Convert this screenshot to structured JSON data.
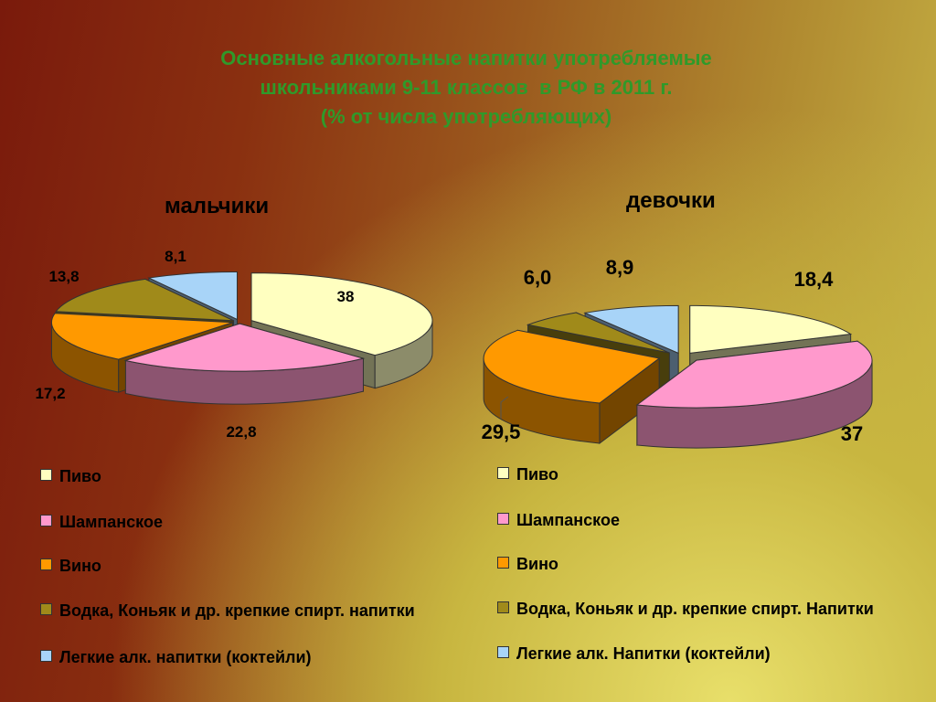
{
  "title": {
    "line1": "Основные алкогольные напитки употребляемые",
    "line2": "школьниками 9-11 классов  в РФ в 2011 г.",
    "line3": "(% от числа употребляющих)"
  },
  "colors": {
    "beer": "#ffffc0",
    "champagne": "#ff99cc",
    "wine": "#ff9900",
    "spirits": "#a08a1a",
    "light": "#a8d4f8"
  },
  "legend_left": [
    {
      "label": "Пиво",
      "color": "#ffffc0"
    },
    {
      "label": "Шампанское",
      "color": "#ff99cc"
    },
    {
      "label": "Вино",
      "color": "#ff9900"
    },
    {
      "label": "Водка, Коньяк и др. крепкие спирт. напитки",
      "color": "#a08a1a"
    },
    {
      "label": "Легкие алк. напитки (коктейли)",
      "color": "#a8d4f8"
    }
  ],
  "legend_right": [
    {
      "label": "Пиво",
      "color": "#ffffc0"
    },
    {
      "label": "Шампанское",
      "color": "#ff99cc"
    },
    {
      "label": "Вино",
      "color": "#ff9900"
    },
    {
      "label": "Водка, Коньяк и др. крепкие спирт. Напитки",
      "color": "#a08a1a"
    },
    {
      "label": "Легкие алк. Напитки (коктейли)",
      "color": "#a8d4f8"
    }
  ],
  "chart_data": [
    {
      "type": "pie",
      "title": "мальчики",
      "categories": [
        "Пиво",
        "Шампанское",
        "Вино",
        "Водка, Коньяк и др. крепкие спирт. напитки",
        "Легкие алк. напитки (коктейли)"
      ],
      "values": [
        38,
        22.8,
        17.2,
        13.8,
        8.1
      ],
      "value_labels": [
        "38",
        "22,8",
        "17,2",
        "13,8",
        "8,1"
      ]
    },
    {
      "type": "pie",
      "title": "девочки",
      "categories": [
        "Пиво",
        "Шампанское",
        "Вино",
        "Водка, Коньяк и др. крепкие спирт. Напитки",
        "Легкие алк. Напитки (коктейли)"
      ],
      "values": [
        18.4,
        37,
        29.5,
        6.0,
        8.9
      ],
      "value_labels": [
        "18,4",
        "37",
        "29,5",
        "6,0",
        "8,9"
      ]
    }
  ]
}
